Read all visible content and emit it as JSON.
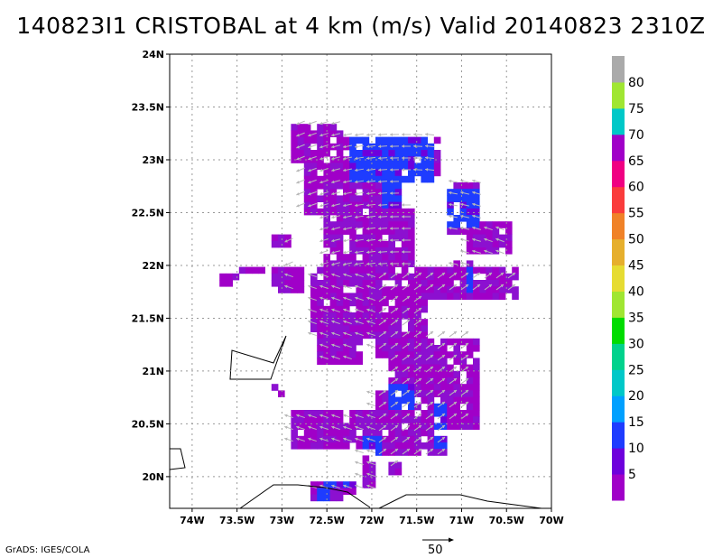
{
  "title": "140823I1 CRISTOBAL at 4 km (m/s) Valid 20140823 2310Z",
  "credit": "GrADS: IGES/COLA",
  "vector_key_label": "50",
  "chart_data": {
    "type": "heatmap",
    "title": "140823I1 CRISTOBAL at 4 km (m/s) Valid 20140823 2310Z",
    "overlay": "wind vectors (grey arrows)",
    "x_ticks": [
      "74W",
      "73.5W",
      "73W",
      "72.5W",
      "72W",
      "71.5W",
      "71W",
      "70.5W",
      "70W"
    ],
    "y_ticks": [
      "20N",
      "20.5N",
      "21N",
      "21.5N",
      "22N",
      "22.5N",
      "23N",
      "23.5N",
      "24N"
    ],
    "xlim": [
      -74.25,
      -70.0
    ],
    "ylim": [
      19.7,
      24.0
    ],
    "grid": true,
    "colorbar": {
      "labels": [
        "5",
        "10",
        "15",
        "20",
        "25",
        "30",
        "35",
        "40",
        "45",
        "50",
        "55",
        "60",
        "65",
        "70",
        "75",
        "80"
      ],
      "colors": [
        "#a000c8",
        "#6e00dc",
        "#1e3cff",
        "#00a0ff",
        "#00c8c8",
        "#00d28c",
        "#00dc00",
        "#a0e632",
        "#e6dc32",
        "#e6af2d",
        "#f08228",
        "#fa3c3c",
        "#f00082",
        "#a000c8",
        "#00c8c8",
        "#a0e632",
        "#aaaaaa"
      ]
    }
  }
}
